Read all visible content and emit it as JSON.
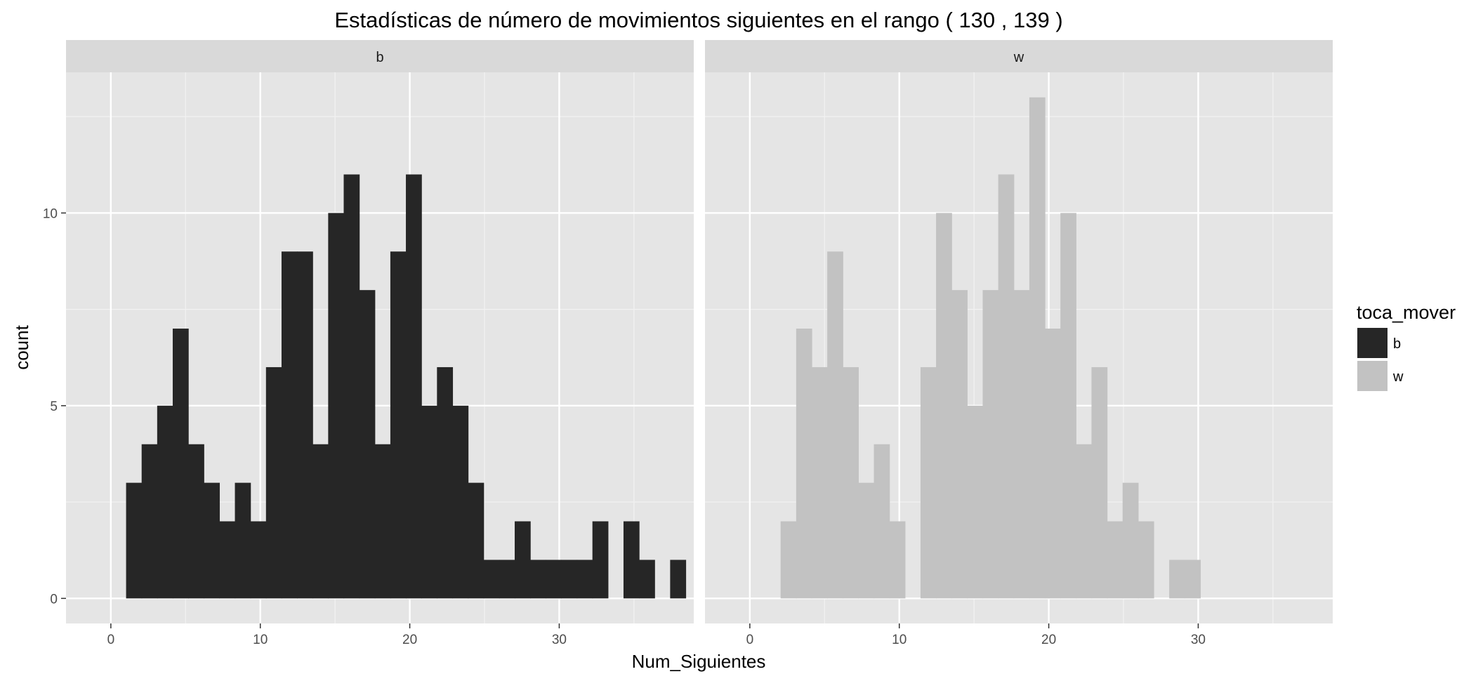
{
  "chart_data": {
    "type": "bar",
    "title": "Estadísticas de número de movimientos siguientes en el rango ( 130 , 139 )",
    "xlabel": "Num_Siguientes",
    "ylabel": "count",
    "xlim": [
      -3,
      39
    ],
    "ylim": [
      -0.65,
      13.65
    ],
    "x_ticks": [
      0,
      10,
      20,
      30
    ],
    "y_ticks": [
      0,
      5,
      10
    ],
    "grid": true,
    "bin_width": 1.04,
    "bin_start": 1.02,
    "legend": {
      "title": "toca_mover",
      "position": "right",
      "entries": [
        {
          "label": "b",
          "color": "#262626"
        },
        {
          "label": "w",
          "color": "#c2c2c2"
        }
      ]
    },
    "panels": [
      {
        "strip": "b",
        "series": "b",
        "color": "#262626",
        "counts": [
          3,
          4,
          5,
          7,
          4,
          3,
          2,
          3,
          2,
          6,
          9,
          9,
          4,
          10,
          11,
          8,
          4,
          9,
          11,
          5,
          6,
          5,
          3,
          1,
          1,
          2,
          1,
          1,
          1,
          1,
          2,
          0,
          2,
          1,
          0,
          1
        ]
      },
      {
        "strip": "w",
        "series": "w",
        "color": "#c2c2c2",
        "counts": [
          0,
          2,
          7,
          6,
          9,
          6,
          3,
          4,
          2,
          0,
          6,
          10,
          8,
          5,
          8,
          11,
          8,
          13,
          7,
          10,
          4,
          6,
          2,
          3,
          2,
          0,
          1,
          1,
          0,
          0,
          0,
          0,
          0,
          0,
          0,
          0
        ]
      }
    ]
  }
}
